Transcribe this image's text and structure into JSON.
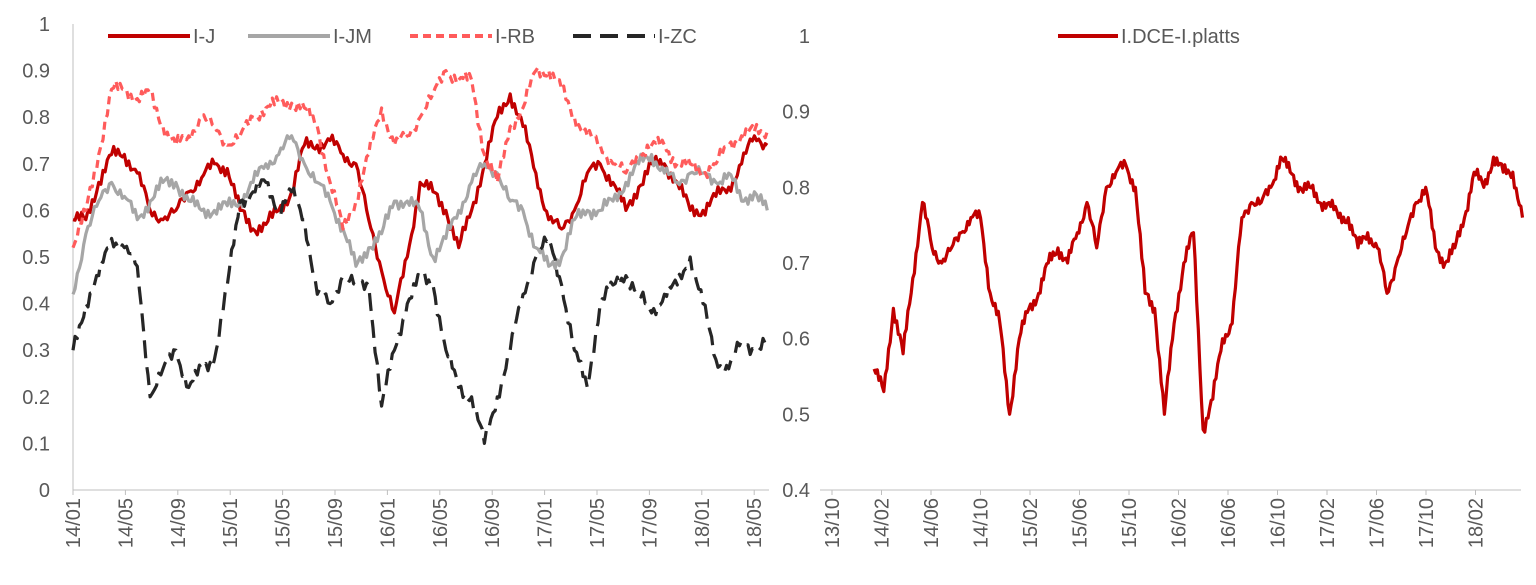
{
  "chart_data": [
    {
      "type": "line",
      "ylim": [
        0,
        1
      ],
      "yticks": [
        "0",
        "0.1",
        "0.2",
        "0.3",
        "0.4",
        "0.5",
        "0.6",
        "0.7",
        "0.8",
        "0.9",
        "1"
      ],
      "xticks": [
        "14/01",
        "14/05",
        "14/09",
        "15/01",
        "15/05",
        "15/09",
        "16/01",
        "16/05",
        "16/09",
        "17/01",
        "17/05",
        "17/09",
        "18/01",
        "18/05"
      ],
      "legend_position": "top",
      "series": [
        {
          "name": "I-J",
          "color": "#C00000",
          "dash": "solid",
          "values": [
            0.58,
            0.58,
            0.66,
            0.72,
            0.72,
            0.68,
            0.6,
            0.58,
            0.6,
            0.64,
            0.67,
            0.7,
            0.69,
            0.6,
            0.56,
            0.57,
            0.6,
            0.64,
            0.74,
            0.74,
            0.75,
            0.72,
            0.7,
            0.58,
            0.47,
            0.38,
            0.5,
            0.66,
            0.64,
            0.6,
            0.52,
            0.6,
            0.7,
            0.8,
            0.85,
            0.78,
            0.68,
            0.58,
            0.56,
            0.6,
            0.68,
            0.7,
            0.66,
            0.6,
            0.65,
            0.7,
            0.7,
            0.66,
            0.6,
            0.6,
            0.63,
            0.65,
            0.7,
            0.76,
            0.74
          ]
        },
        {
          "name": "I-JM",
          "color": "#A6A6A6",
          "dash": "solid",
          "values": [
            0.42,
            0.55,
            0.62,
            0.66,
            0.63,
            0.58,
            0.62,
            0.66,
            0.66,
            0.62,
            0.6,
            0.6,
            0.61,
            0.62,
            0.66,
            0.7,
            0.72,
            0.76,
            0.7,
            0.66,
            0.62,
            0.56,
            0.48,
            0.52,
            0.55,
            0.62,
            0.62,
            0.6,
            0.5,
            0.54,
            0.6,
            0.66,
            0.7,
            0.68,
            0.62,
            0.6,
            0.52,
            0.48,
            0.5,
            0.58,
            0.6,
            0.6,
            0.62,
            0.66,
            0.7,
            0.72,
            0.68,
            0.66,
            0.68,
            0.68,
            0.66,
            0.68,
            0.62,
            0.64,
            0.6
          ]
        },
        {
          "name": "I-RB",
          "color": "#FF5B5B",
          "dash": "dashed",
          "values": [
            0.52,
            0.6,
            0.72,
            0.86,
            0.86,
            0.84,
            0.85,
            0.78,
            0.74,
            0.76,
            0.8,
            0.78,
            0.74,
            0.76,
            0.8,
            0.82,
            0.83,
            0.83,
            0.82,
            0.78,
            0.66,
            0.56,
            0.62,
            0.72,
            0.82,
            0.74,
            0.76,
            0.8,
            0.85,
            0.9,
            0.88,
            0.88,
            0.72,
            0.66,
            0.78,
            0.82,
            0.9,
            0.9,
            0.86,
            0.8,
            0.76,
            0.74,
            0.7,
            0.68,
            0.72,
            0.74,
            0.74,
            0.7,
            0.7,
            0.68,
            0.7,
            0.74,
            0.76,
            0.77,
            0.77
          ]
        },
        {
          "name": "I-ZC",
          "color": "#262626",
          "dash": "dashed",
          "values": [
            0.3,
            0.4,
            0.46,
            0.54,
            0.52,
            0.48,
            0.2,
            0.26,
            0.3,
            0.22,
            0.26,
            0.28,
            0.44,
            0.62,
            0.64,
            0.66,
            0.6,
            0.64,
            0.58,
            0.42,
            0.4,
            0.46,
            0.44,
            0.44,
            0.18,
            0.3,
            0.4,
            0.46,
            0.44,
            0.3,
            0.22,
            0.2,
            0.1,
            0.2,
            0.3,
            0.42,
            0.5,
            0.54,
            0.44,
            0.3,
            0.22,
            0.4,
            0.44,
            0.46,
            0.42,
            0.38,
            0.42,
            0.44,
            0.5,
            0.4,
            0.28,
            0.26,
            0.32,
            0.3,
            0.32
          ]
        }
      ]
    },
    {
      "type": "line",
      "ylim": [
        0.4,
        1
      ],
      "yticks": [
        "0.4",
        "0.5",
        "0.6",
        "0.7",
        "0.8",
        "0.9",
        "1"
      ],
      "xticks": [
        "13/10",
        "14/02",
        "14/06",
        "14/10",
        "15/02",
        "15/06",
        "15/10",
        "16/02",
        "16/06",
        "16/10",
        "17/02",
        "17/06",
        "17/10",
        "18/02"
      ],
      "legend_position": "top",
      "series": [
        {
          "name": "I.DCE-I.platts",
          "color": "#C00000",
          "dash": "solid",
          "x_start": 0.85,
          "x_end": 13.95,
          "values": [
            0.56,
            0.53,
            0.64,
            0.58,
            0.68,
            0.78,
            0.72,
            0.7,
            0.72,
            0.74,
            0.76,
            0.76,
            0.66,
            0.62,
            0.5,
            0.6,
            0.64,
            0.66,
            0.7,
            0.72,
            0.7,
            0.74,
            0.78,
            0.72,
            0.8,
            0.82,
            0.83,
            0.8,
            0.66,
            0.64,
            0.5,
            0.62,
            0.7,
            0.74,
            0.48,
            0.52,
            0.6,
            0.62,
            0.76,
            0.78,
            0.78,
            0.8,
            0.84,
            0.82,
            0.8,
            0.8,
            0.78,
            0.78,
            0.76,
            0.76,
            0.72,
            0.74,
            0.72,
            0.66,
            0.7,
            0.74,
            0.78,
            0.8,
            0.72,
            0.7,
            0.72,
            0.76,
            0.82,
            0.8,
            0.84,
            0.82,
            0.82,
            0.76
          ]
        }
      ]
    }
  ]
}
